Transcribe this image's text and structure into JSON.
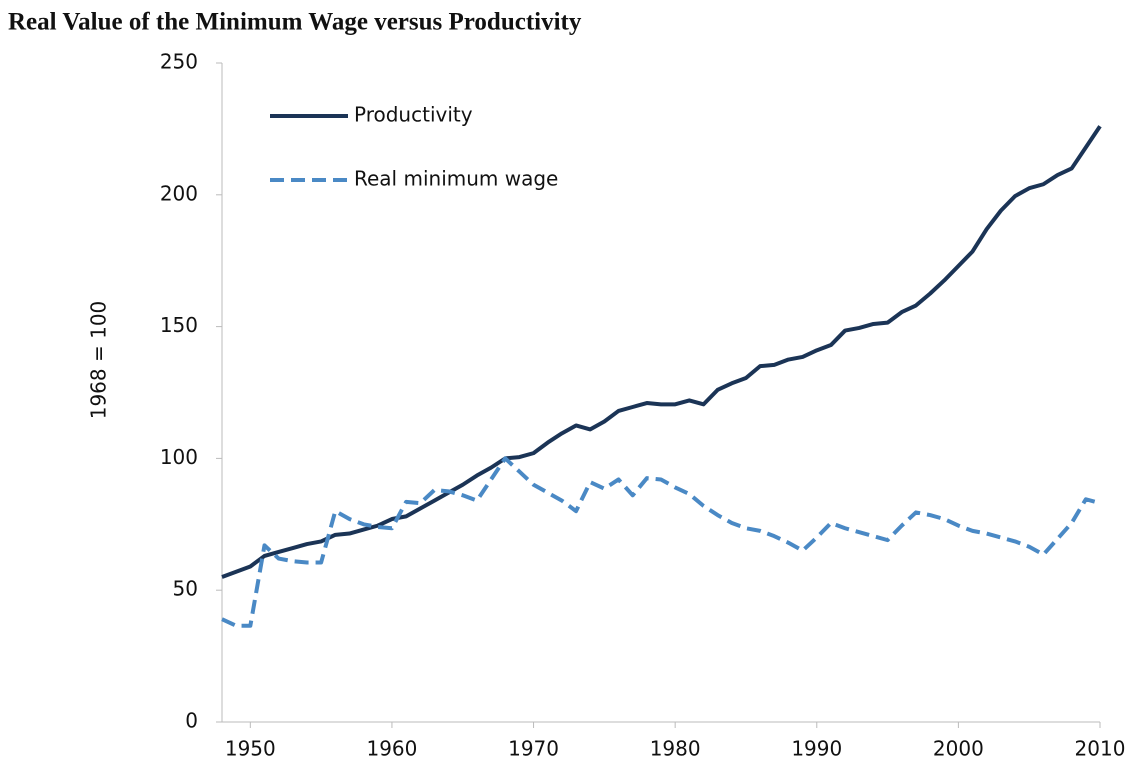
{
  "chart_data": {
    "type": "line",
    "title": "Real Value of the Minimum Wage versus Productivity",
    "y_label": "1968 = 100",
    "x": [
      1948,
      1949,
      1950,
      1951,
      1952,
      1953,
      1954,
      1955,
      1956,
      1957,
      1958,
      1959,
      1960,
      1961,
      1962,
      1963,
      1964,
      1965,
      1966,
      1967,
      1968,
      1969,
      1970,
      1971,
      1972,
      1973,
      1974,
      1975,
      1976,
      1977,
      1978,
      1979,
      1980,
      1981,
      1982,
      1983,
      1984,
      1985,
      1986,
      1987,
      1988,
      1989,
      1990,
      1991,
      1992,
      1993,
      1994,
      1995,
      1996,
      1997,
      1998,
      1999,
      2000,
      2001,
      2002,
      2003,
      2004,
      2005,
      2006,
      2007,
      2008,
      2009,
      2010
    ],
    "series": [
      {
        "name": "Productivity",
        "color": "#1b3456",
        "dashed": false,
        "values": [
          55,
          57,
          59,
          63,
          64.5,
          66,
          67.5,
          68.5,
          71,
          71.5,
          73,
          74.5,
          77,
          78,
          81,
          84,
          87,
          90,
          93.5,
          96.5,
          100,
          100.5,
          102,
          106,
          109.5,
          112.5,
          111,
          114,
          118,
          119.5,
          121,
          120.5,
          120.5,
          122,
          120.5,
          126,
          128.5,
          130.5,
          135,
          135.5,
          137.5,
          138.5,
          141,
          143,
          148.5,
          149.5,
          151,
          151.5,
          155.5,
          158,
          162.5,
          167.5,
          173,
          178.5,
          187,
          194,
          199.5,
          202.5,
          204,
          207.5,
          210,
          218,
          226
        ]
      },
      {
        "name": "Real minimum wage",
        "color": "#4a89c5",
        "dashed": true,
        "values": [
          39,
          36.5,
          36.5,
          67,
          62,
          61,
          60.5,
          60.5,
          80,
          77,
          75,
          74,
          73.5,
          83.5,
          83,
          88,
          87.5,
          86,
          84,
          92,
          100,
          95,
          90,
          87,
          84,
          80,
          91,
          88.5,
          92,
          86,
          92.5,
          92,
          89,
          86.5,
          82,
          78.5,
          75.5,
          73.5,
          72.5,
          70.5,
          68,
          65,
          70,
          75.5,
          73.5,
          72,
          70.5,
          69,
          74.5,
          79.5,
          78.5,
          77,
          74.5,
          72.5,
          71.5,
          70,
          68.5,
          66.5,
          63.5,
          69.5,
          75.5,
          84.5,
          83
        ]
      }
    ],
    "xlim": [
      1948,
      2010
    ],
    "xticks": [
      1950,
      1960,
      1970,
      1980,
      1990,
      2000,
      2010
    ],
    "ylim": [
      0,
      250
    ],
    "yticks": [
      0,
      50,
      100,
      150,
      200,
      250
    ]
  }
}
